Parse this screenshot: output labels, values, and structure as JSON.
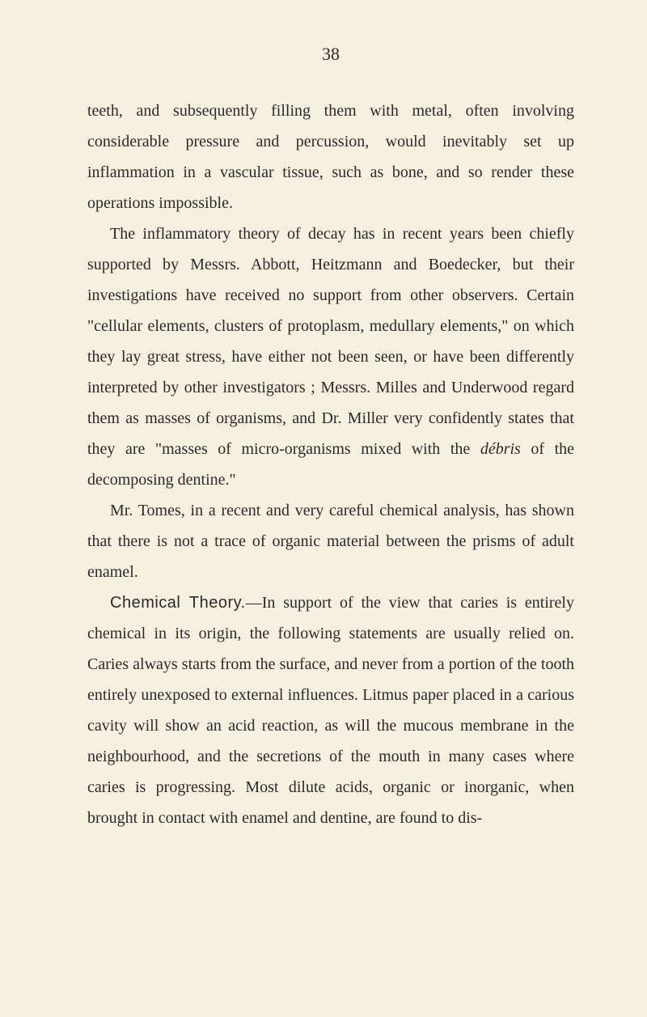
{
  "page": {
    "number": "38",
    "background_color": "#f5f0e0",
    "text_color": "#2a2a2a"
  },
  "paragraphs": {
    "p1": "teeth, and subsequently filling them with metal, often involving considerable pressure and percussion, would inevitably set up inflammation in a vascular tissue, such as bone, and so render these operations impossible.",
    "p2": "The inflammatory theory of decay has in recent years been chiefly supported by Messrs. Abbott, Heitzmann and Boedecker, but their investigations have received no support from other observers. Certain \"cellular elements, clusters of protoplasm, medullary elements,\" on which they lay great stress, have either not been seen, or have been differently interpreted by other investigators ; Messrs. Milles and Underwood regard them as masses of organisms, and Dr. Miller very confidently states that they are \"masses of micro-organisms mixed with the ",
    "p2_italic": "débris",
    "p2_end": " of the decomposing dentine.\"",
    "p3": "Mr. Tomes, in a recent and very careful chemical analysis, has shown that there is not a trace of organic material between the prisms of adult enamel.",
    "p4_label": "Chemical Theory.",
    "p4": "—In support of the view that caries is entirely chemical in its origin, the following statements are usually relied on. Caries always starts from the surface, and never from a portion of the tooth entirely unexposed to external influences. Litmus paper placed in a carious cavity will show an acid reaction, as will the mucous membrane in the neighbourhood, and the secretions of the mouth in many cases where caries is progressing. Most dilute acids, organic or inorganic, when brought in contact with enamel and dentine, are found to dis-"
  }
}
